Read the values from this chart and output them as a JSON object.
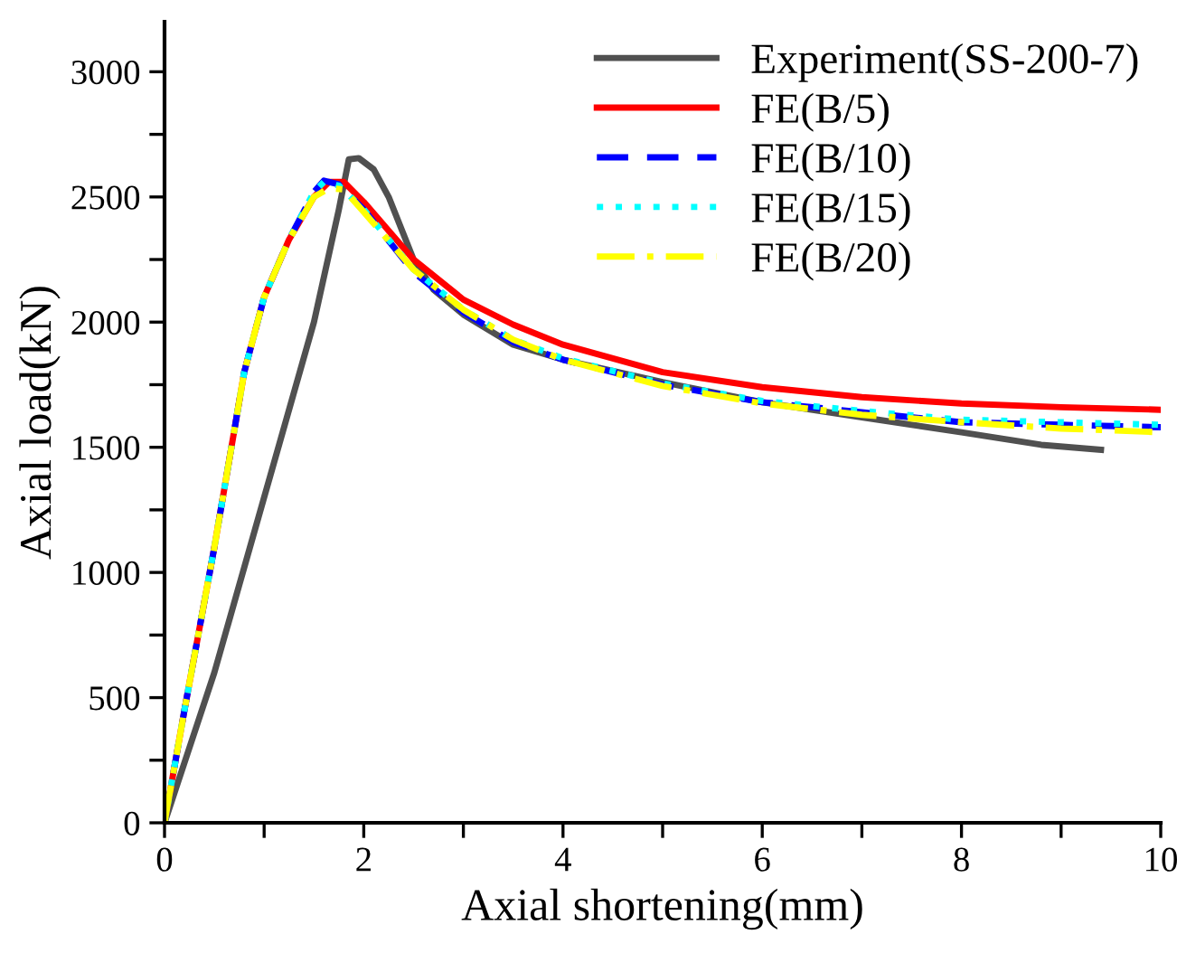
{
  "chart_data": {
    "type": "line",
    "xlabel": "Axial shortening(mm)",
    "ylabel": "Axial load(kN)",
    "xlim": [
      0,
      10
    ],
    "ylim": [
      0,
      3200
    ],
    "xticks": [
      0,
      {
        "value": 1,
        "label": null
      },
      2,
      {
        "value": 3,
        "label": null
      },
      4,
      {
        "value": 5,
        "label": null
      },
      6,
      {
        "value": 7,
        "label": null
      },
      8,
      {
        "value": 9,
        "label": null
      },
      10
    ],
    "yticks": [
      0,
      {
        "value": 250,
        "label": null
      },
      500,
      {
        "value": 750,
        "label": null
      },
      1000,
      {
        "value": 1250,
        "label": null
      },
      1500,
      {
        "value": 1750,
        "label": null
      },
      2000,
      {
        "value": 2250,
        "label": null
      },
      2500,
      {
        "value": 2750,
        "label": null
      },
      3000
    ],
    "grid": false,
    "legend": "top right",
    "series": [
      {
        "name": "Experiment(SS-200-7)",
        "color": "#505050",
        "line_style": "solid",
        "x": [
          0,
          0.5,
          1,
          1.5,
          1.75,
          1.85,
          1.95,
          2.1,
          2.25,
          2.5,
          2.7,
          3,
          3.5,
          4,
          5,
          6,
          7,
          8,
          8.8,
          9.4
        ],
        "values": [
          0,
          600,
          1300,
          2000,
          2450,
          2650,
          2655,
          2610,
          2500,
          2250,
          2130,
          2030,
          1910,
          1850,
          1760,
          1680,
          1620,
          1560,
          1510,
          1490
        ]
      },
      {
        "name": "FE(B/5)",
        "color": "#ff0000",
        "line_style": "solid",
        "x": [
          0,
          0.2,
          0.5,
          0.8,
          1,
          1.25,
          1.5,
          1.65,
          1.8,
          2,
          2.5,
          3,
          3.5,
          4,
          5,
          6,
          7,
          8,
          9,
          10
        ],
        "values": [
          0,
          450,
          1100,
          1800,
          2100,
          2330,
          2500,
          2560,
          2560,
          2480,
          2250,
          2090,
          1990,
          1910,
          1800,
          1740,
          1700,
          1675,
          1660,
          1650
        ]
      },
      {
        "name": "FE(B/10)",
        "color": "#0000ff",
        "line_style": "dashed",
        "x": [
          0,
          0.2,
          0.5,
          0.8,
          1,
          1.25,
          1.5,
          1.6,
          1.75,
          2,
          2.5,
          3,
          3.5,
          4,
          5,
          6,
          7,
          8,
          9,
          10
        ],
        "values": [
          0,
          450,
          1100,
          1800,
          2100,
          2330,
          2520,
          2565,
          2550,
          2450,
          2200,
          2040,
          1920,
          1850,
          1750,
          1680,
          1640,
          1600,
          1590,
          1580
        ]
      },
      {
        "name": "FE(B/15)",
        "color": "#00ffff",
        "line_style": "dotted",
        "x": [
          0,
          0.2,
          0.5,
          0.8,
          1,
          1.25,
          1.5,
          1.6,
          1.75,
          2,
          2.5,
          3,
          3.5,
          4,
          5,
          6,
          7,
          8,
          9,
          10
        ],
        "values": [
          0,
          450,
          1100,
          1800,
          2100,
          2330,
          2520,
          2560,
          2545,
          2450,
          2210,
          2050,
          1930,
          1855,
          1755,
          1685,
          1645,
          1610,
          1600,
          1590
        ]
      },
      {
        "name": "FE(B/20)",
        "color": "#ffff00",
        "line_style": "dashdot",
        "x": [
          0,
          0.2,
          0.5,
          0.8,
          1,
          1.25,
          1.5,
          1.65,
          1.8,
          2,
          2.5,
          3,
          3.5,
          4,
          5,
          6,
          7,
          8,
          9,
          10
        ],
        "values": [
          0,
          450,
          1100,
          1800,
          2100,
          2330,
          2500,
          2535,
          2530,
          2440,
          2210,
          2050,
          1930,
          1850,
          1745,
          1675,
          1630,
          1600,
          1575,
          1560
        ]
      }
    ]
  }
}
